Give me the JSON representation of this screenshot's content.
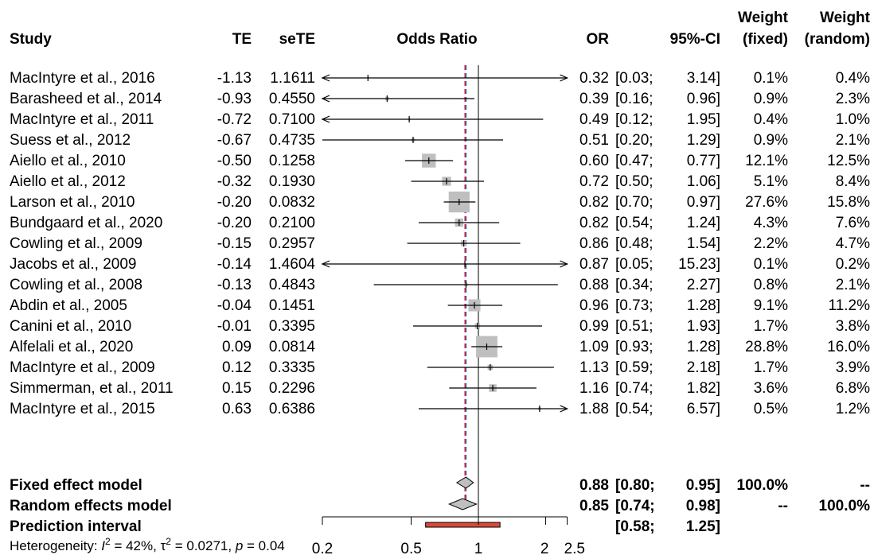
{
  "headers": {
    "study": "Study",
    "te": "TE",
    "sete": "seTE",
    "plot": "Odds Ratio",
    "or": "OR",
    "ci": "95%-CI",
    "wf1": "Weight",
    "wf2": "(fixed)",
    "wr1": "Weight",
    "wr2": "(random)"
  },
  "studies": [
    {
      "study": "MacIntyre et al., 2016",
      "te": "-1.13",
      "sete": "1.1611",
      "or": "0.32",
      "lo": "[0.03;",
      "hi": "3.14]",
      "wf": "0.1%",
      "wr": "0.4%"
    },
    {
      "study": "Barasheed et al., 2014",
      "te": "-0.93",
      "sete": "0.4550",
      "or": "0.39",
      "lo": "[0.16;",
      "hi": "0.96]",
      "wf": "0.9%",
      "wr": "2.3%"
    },
    {
      "study": "MacIntyre et al., 2011",
      "te": "-0.72",
      "sete": "0.7100",
      "or": "0.49",
      "lo": "[0.12;",
      "hi": "1.95]",
      "wf": "0.4%",
      "wr": "1.0%"
    },
    {
      "study": "Suess et al., 2012",
      "te": "-0.67",
      "sete": "0.4735",
      "or": "0.51",
      "lo": "[0.20;",
      "hi": "1.29]",
      "wf": "0.9%",
      "wr": "2.1%"
    },
    {
      "study": "Aiello et al., 2010",
      "te": "-0.50",
      "sete": "0.1258",
      "or": "0.60",
      "lo": "[0.47;",
      "hi": "0.77]",
      "wf": "12.1%",
      "wr": "12.5%"
    },
    {
      "study": "Aiello et al., 2012",
      "te": "-0.32",
      "sete": "0.1930",
      "or": "0.72",
      "lo": "[0.50;",
      "hi": "1.06]",
      "wf": "5.1%",
      "wr": "8.4%"
    },
    {
      "study": "Larson et al., 2010",
      "te": "-0.20",
      "sete": "0.0832",
      "or": "0.82",
      "lo": "[0.70;",
      "hi": "0.97]",
      "wf": "27.6%",
      "wr": "15.8%"
    },
    {
      "study": "Bundgaard et al., 2020",
      "te": "-0.20",
      "sete": "0.2100",
      "or": "0.82",
      "lo": "[0.54;",
      "hi": "1.24]",
      "wf": "4.3%",
      "wr": "7.6%"
    },
    {
      "study": "Cowling et al., 2009",
      "te": "-0.15",
      "sete": "0.2957",
      "or": "0.86",
      "lo": "[0.48;",
      "hi": "1.54]",
      "wf": "2.2%",
      "wr": "4.7%"
    },
    {
      "study": "Jacobs et al., 2009",
      "te": "-0.14",
      "sete": "1.4604",
      "or": "0.87",
      "lo": "[0.05;",
      "hi": "15.23]",
      "wf": "0.1%",
      "wr": "0.2%"
    },
    {
      "study": "Cowling et al., 2008",
      "te": "-0.13",
      "sete": "0.4843",
      "or": "0.88",
      "lo": "[0.34;",
      "hi": "2.27]",
      "wf": "0.8%",
      "wr": "2.1%"
    },
    {
      "study": "Abdin et al., 2005",
      "te": "-0.04",
      "sete": "0.1451",
      "or": "0.96",
      "lo": "[0.73;",
      "hi": "1.28]",
      "wf": "9.1%",
      "wr": "11.2%"
    },
    {
      "study": "Canini et al., 2010",
      "te": "-0.01",
      "sete": "0.3395",
      "or": "0.99",
      "lo": "[0.51;",
      "hi": "1.93]",
      "wf": "1.7%",
      "wr": "3.8%"
    },
    {
      "study": "Alfelali et al., 2020",
      "te": "0.09",
      "sete": "0.0814",
      "or": "1.09",
      "lo": "[0.93;",
      "hi": "1.28]",
      "wf": "28.8%",
      "wr": "16.0%"
    },
    {
      "study": "MacIntyre et al., 2009",
      "te": "0.12",
      "sete": "0.3335",
      "or": "1.13",
      "lo": "[0.59;",
      "hi": "2.18]",
      "wf": "1.7%",
      "wr": "3.9%"
    },
    {
      "study": "Simmerman, et al., 2011",
      "te": "0.15",
      "sete": "0.2296",
      "or": "1.16",
      "lo": "[0.74;",
      "hi": "1.82]",
      "wf": "3.6%",
      "wr": "6.8%"
    },
    {
      "study": "MacIntyre et al., 2015",
      "te": "0.63",
      "sete": "0.6386",
      "or": "1.88",
      "lo": "[0.54;",
      "hi": "6.57]",
      "wf": "0.5%",
      "wr": "1.2%"
    }
  ],
  "summary": [
    {
      "label": "Fixed effect model",
      "or": "0.88",
      "lo": "[0.80;",
      "hi": "0.95]",
      "wf": "100.0%",
      "wr": "--"
    },
    {
      "label": "Random effects model",
      "or": "0.85",
      "lo": "[0.74;",
      "hi": "0.98]",
      "wf": "--",
      "wr": "100.0%"
    },
    {
      "label": "Prediction interval",
      "or": "",
      "lo": "[0.58;",
      "hi": "1.25]",
      "wf": "",
      "wr": ""
    }
  ],
  "heterogeneity": {
    "prefix": "Heterogeneity: ",
    "i2_symbol": "I",
    "i2_sup": "2",
    "i2_value": " = 42%, ",
    "tau_symbol": "τ",
    "tau_sup": "2",
    "tau_value": " = 0.0271, ",
    "p_symbol": "p",
    "p_value": " = 0.04"
  },
  "chart_data": {
    "type": "forest",
    "x_scale": "log",
    "xlim": [
      0.2,
      2.5
    ],
    "ticks": [
      0.2,
      0.5,
      1,
      2,
      2.5
    ],
    "tick_labels": [
      "0.2",
      "0.5",
      "1",
      "2",
      "2.5"
    ],
    "reference_line": 1,
    "points": [
      {
        "or": 0.32,
        "lower": 0.03,
        "upper": 3.14,
        "weight_fixed": 0.1
      },
      {
        "or": 0.39,
        "lower": 0.16,
        "upper": 0.96,
        "weight_fixed": 0.9
      },
      {
        "or": 0.49,
        "lower": 0.12,
        "upper": 1.95,
        "weight_fixed": 0.4
      },
      {
        "or": 0.51,
        "lower": 0.2,
        "upper": 1.29,
        "weight_fixed": 0.9
      },
      {
        "or": 0.6,
        "lower": 0.47,
        "upper": 0.77,
        "weight_fixed": 12.1
      },
      {
        "or": 0.72,
        "lower": 0.5,
        "upper": 1.06,
        "weight_fixed": 5.1
      },
      {
        "or": 0.82,
        "lower": 0.7,
        "upper": 0.97,
        "weight_fixed": 27.6
      },
      {
        "or": 0.82,
        "lower": 0.54,
        "upper": 1.24,
        "weight_fixed": 4.3
      },
      {
        "or": 0.86,
        "lower": 0.48,
        "upper": 1.54,
        "weight_fixed": 2.2
      },
      {
        "or": 0.87,
        "lower": 0.05,
        "upper": 15.23,
        "weight_fixed": 0.1
      },
      {
        "or": 0.88,
        "lower": 0.34,
        "upper": 2.27,
        "weight_fixed": 0.8
      },
      {
        "or": 0.96,
        "lower": 0.73,
        "upper": 1.28,
        "weight_fixed": 9.1
      },
      {
        "or": 0.99,
        "lower": 0.51,
        "upper": 1.93,
        "weight_fixed": 1.7
      },
      {
        "or": 1.09,
        "lower": 0.93,
        "upper": 1.28,
        "weight_fixed": 28.8
      },
      {
        "or": 1.13,
        "lower": 0.59,
        "upper": 2.18,
        "weight_fixed": 1.7
      },
      {
        "or": 1.16,
        "lower": 0.74,
        "upper": 1.82,
        "weight_fixed": 3.6
      },
      {
        "or": 1.88,
        "lower": 0.54,
        "upper": 6.57,
        "weight_fixed": 0.5
      }
    ],
    "fixed": {
      "or": 0.88,
      "lower": 0.8,
      "upper": 0.95
    },
    "random": {
      "or": 0.85,
      "lower": 0.74,
      "upper": 0.98
    },
    "prediction": {
      "lower": 0.58,
      "upper": 1.25
    },
    "colors": {
      "square": "#bfbfbf",
      "diamond": "#bfbfbf",
      "prediction": "#d94a3a",
      "fixed_line": "#3b5bdb",
      "random_line": "#d62728",
      "line": "#000000"
    }
  }
}
